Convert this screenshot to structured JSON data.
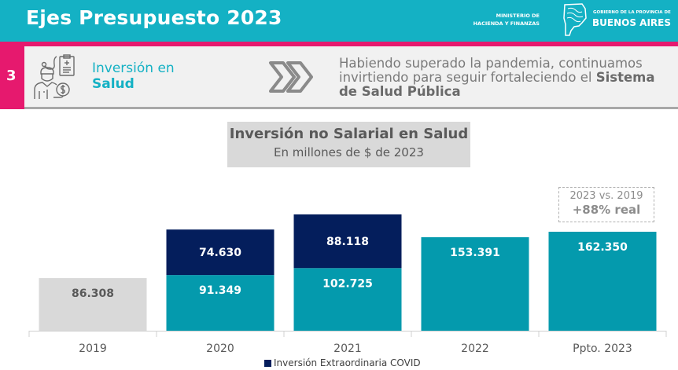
{
  "header": {
    "title": "Ejes Presupuesto 2023",
    "ministry_line1": "MINISTERIO DE",
    "ministry_line2": "HACIENDA Y FINANZAS",
    "gov_small": "GOBIERNO DE LA PROVINCIA DE",
    "gov_big": "BUENOS AIRES"
  },
  "section": {
    "number": "3",
    "topic_line1": "Inversión en",
    "topic_line2": "Salud",
    "tagline_part1": "Habiendo superado la pandemia, continuamos invirtiendo para seguir fortaleciendo el ",
    "tagline_bold": "Sistema de Salud Pública"
  },
  "annotation": {
    "line1": "2023 vs. 2019",
    "line2": "+88% real"
  },
  "colors": {
    "header_teal": "#14b1c4",
    "accent_pink": "#e6196e",
    "bar_teal": "#049aad",
    "bar_navy": "#041e5c",
    "bar_gray": "#d9d9d9"
  },
  "chart_data": {
    "type": "bar",
    "stacked": true,
    "title": "Inversión no Salarial en Salud",
    "subtitle": "En millones de $ de 2023",
    "xlabel": "",
    "ylabel": "",
    "categories": [
      "2019",
      "2020",
      "2021",
      "2022",
      "Ppto. 2023"
    ],
    "series": [
      {
        "name": "Inversión no Salarial",
        "values": [
          86308,
          91349,
          102725,
          153391,
          162350
        ],
        "labels": [
          "86.308",
          "91.349",
          "102.725",
          "153.391",
          "162.350"
        ]
      },
      {
        "name": "Inversión Extraordinaria COVID",
        "values": [
          0,
          74630,
          88118,
          0,
          0
        ],
        "labels": [
          "",
          "74.630",
          "88.118",
          "",
          ""
        ]
      }
    ],
    "ylim": [
      0,
      200000
    ],
    "grid": false,
    "legend": {
      "entries": [
        "Inversión Extraordinaria COVID"
      ],
      "placement": "bottom"
    }
  }
}
